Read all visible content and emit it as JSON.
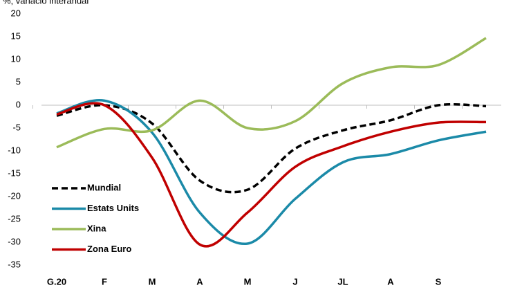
{
  "chart_data": {
    "type": "line",
    "y_label": "%, variació interanual",
    "categories": [
      "G.20",
      "F",
      "M",
      "A",
      "M",
      "J",
      "JL",
      "A",
      "S",
      null
    ],
    "series": [
      {
        "name": "Mundial",
        "color": "#000000",
        "dash": true,
        "values": [
          -2.3,
          0,
          -4,
          -16.5,
          -18.5,
          -9.5,
          -5.5,
          -3.3,
          0,
          -0.2
        ]
      },
      {
        "name": "Estats Units",
        "color": "#1b8aa8",
        "values": [
          -1.8,
          1,
          -6,
          -23.5,
          -30.3,
          -20.5,
          -12.5,
          -10.7,
          -7.7,
          -5.8
        ]
      },
      {
        "name": "Xina",
        "color": "#9bbb59",
        "values": [
          -9.2,
          -5.2,
          -5.5,
          1,
          -5,
          -3.5,
          4.8,
          8.3,
          8.8,
          14.7
        ]
      },
      {
        "name": "Zona Euro",
        "color": "#c00000",
        "values": [
          -2,
          0,
          -11.5,
          -30.5,
          -23.5,
          -13.5,
          -9,
          -5.8,
          -3.8,
          -3.7
        ]
      }
    ],
    "ylim": [
      -35,
      20
    ],
    "yticks": [
      -35,
      -30,
      -25,
      -20,
      -15,
      -10,
      -5,
      0,
      5,
      10,
      15,
      20
    ]
  }
}
